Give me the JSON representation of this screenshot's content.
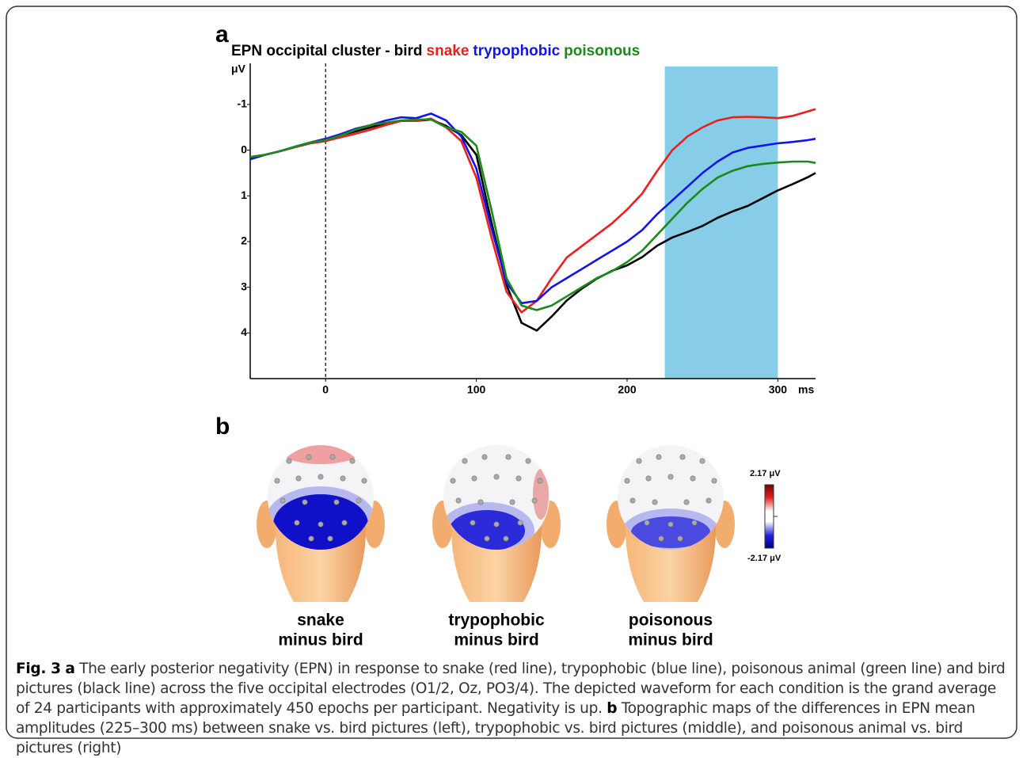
{
  "chart_data": {
    "type": "line",
    "panel_label": "a",
    "title": "EPN occipital cluster -",
    "x_label": "ms",
    "y_label": "μV",
    "x": [
      -50,
      -40,
      -30,
      -20,
      -10,
      0,
      10,
      20,
      30,
      40,
      50,
      60,
      70,
      80,
      90,
      100,
      110,
      120,
      130,
      140,
      150,
      160,
      170,
      180,
      190,
      200,
      210,
      220,
      230,
      240,
      250,
      260,
      270,
      280,
      290,
      300,
      310,
      320,
      325
    ],
    "series": [
      {
        "name": "bird",
        "color": "#000000",
        "values": [
          0.19,
          0.1,
          0.02,
          -0.07,
          -0.15,
          -0.2,
          -0.33,
          -0.41,
          -0.5,
          -0.59,
          -0.64,
          -0.64,
          -0.67,
          -0.53,
          -0.33,
          0.1,
          1.57,
          2.95,
          3.78,
          3.95,
          3.64,
          3.29,
          3.03,
          2.81,
          2.64,
          2.52,
          2.34,
          2.09,
          1.91,
          1.79,
          1.66,
          1.48,
          1.34,
          1.22,
          1.05,
          0.88,
          0.74,
          0.59,
          0.5
        ]
      },
      {
        "name": "snake",
        "color": "#e8201e",
        "values": [
          0.15,
          0.1,
          0.02,
          -0.07,
          -0.15,
          -0.2,
          -0.28,
          -0.36,
          -0.45,
          -0.55,
          -0.64,
          -0.64,
          -0.69,
          -0.5,
          -0.2,
          0.6,
          1.9,
          3.1,
          3.55,
          3.3,
          2.8,
          2.35,
          2.1,
          1.85,
          1.6,
          1.3,
          0.95,
          0.45,
          0.0,
          -0.3,
          -0.5,
          -0.65,
          -0.72,
          -0.73,
          -0.72,
          -0.7,
          -0.75,
          -0.85,
          -0.9
        ]
      },
      {
        "name": "trypophobic",
        "color": "#1414e6",
        "values": [
          0.2,
          0.1,
          0.02,
          -0.08,
          -0.17,
          -0.25,
          -0.35,
          -0.47,
          -0.55,
          -0.65,
          -0.72,
          -0.7,
          -0.8,
          -0.65,
          -0.3,
          0.4,
          1.7,
          2.9,
          3.35,
          3.3,
          3.0,
          2.8,
          2.6,
          2.4,
          2.2,
          2.0,
          1.75,
          1.4,
          1.1,
          0.8,
          0.5,
          0.25,
          0.05,
          -0.05,
          -0.1,
          -0.15,
          -0.18,
          -0.22,
          -0.25
        ]
      },
      {
        "name": "poisonous",
        "color": "#1a8a1a",
        "values": [
          0.15,
          0.1,
          0.02,
          -0.08,
          -0.17,
          -0.22,
          -0.32,
          -0.45,
          -0.55,
          -0.6,
          -0.65,
          -0.67,
          -0.67,
          -0.5,
          -0.4,
          -0.1,
          1.3,
          2.8,
          3.4,
          3.5,
          3.4,
          3.2,
          3.0,
          2.8,
          2.65,
          2.45,
          2.2,
          1.85,
          1.5,
          1.15,
          0.85,
          0.6,
          0.45,
          0.35,
          0.3,
          0.27,
          0.25,
          0.25,
          0.28
        ]
      }
    ],
    "xlim": [
      -50,
      325
    ],
    "xticks": [
      0,
      100,
      200,
      300
    ],
    "ylim": [
      -1.9,
      5
    ],
    "y_inverted": true,
    "yticks": [
      -1,
      0,
      1,
      2,
      3,
      4
    ],
    "highlight": [
      225,
      300
    ],
    "highlight_color": "#87cde8",
    "zero_line": 0
  },
  "panel_b": {
    "label": "b",
    "topomaps": [
      {
        "lines": [
          "snake",
          "minus bird"
        ]
      },
      {
        "lines": [
          "trypophobic",
          "minus bird"
        ]
      },
      {
        "lines": [
          "poisonous",
          "minus bird"
        ]
      }
    ],
    "colorbar": {
      "max_label": "2.17 μV",
      "min_label": "-2.17 μV"
    }
  },
  "caption": {
    "fig": "Fig. 3",
    "a": "a",
    "a_text": " The early posterior negativity (EPN) in response to snake (red line), trypophobic (blue line), poisonous animal (green line) and bird pictures (black line) across the five occipital electrodes (O1/2, Oz, PO3/4). The depicted waveform for each condition is the grand average of 24 participants with approximately 450 epochs per participant. Negativity is up. ",
    "b": "b",
    "b_text": " Topographic maps of the differences in EPN mean amplitudes (225–300 ms) between snake vs. bird pictures (left), trypophobic vs. bird pictures (middle), and poisonous animal vs. bird pictures (right)"
  }
}
